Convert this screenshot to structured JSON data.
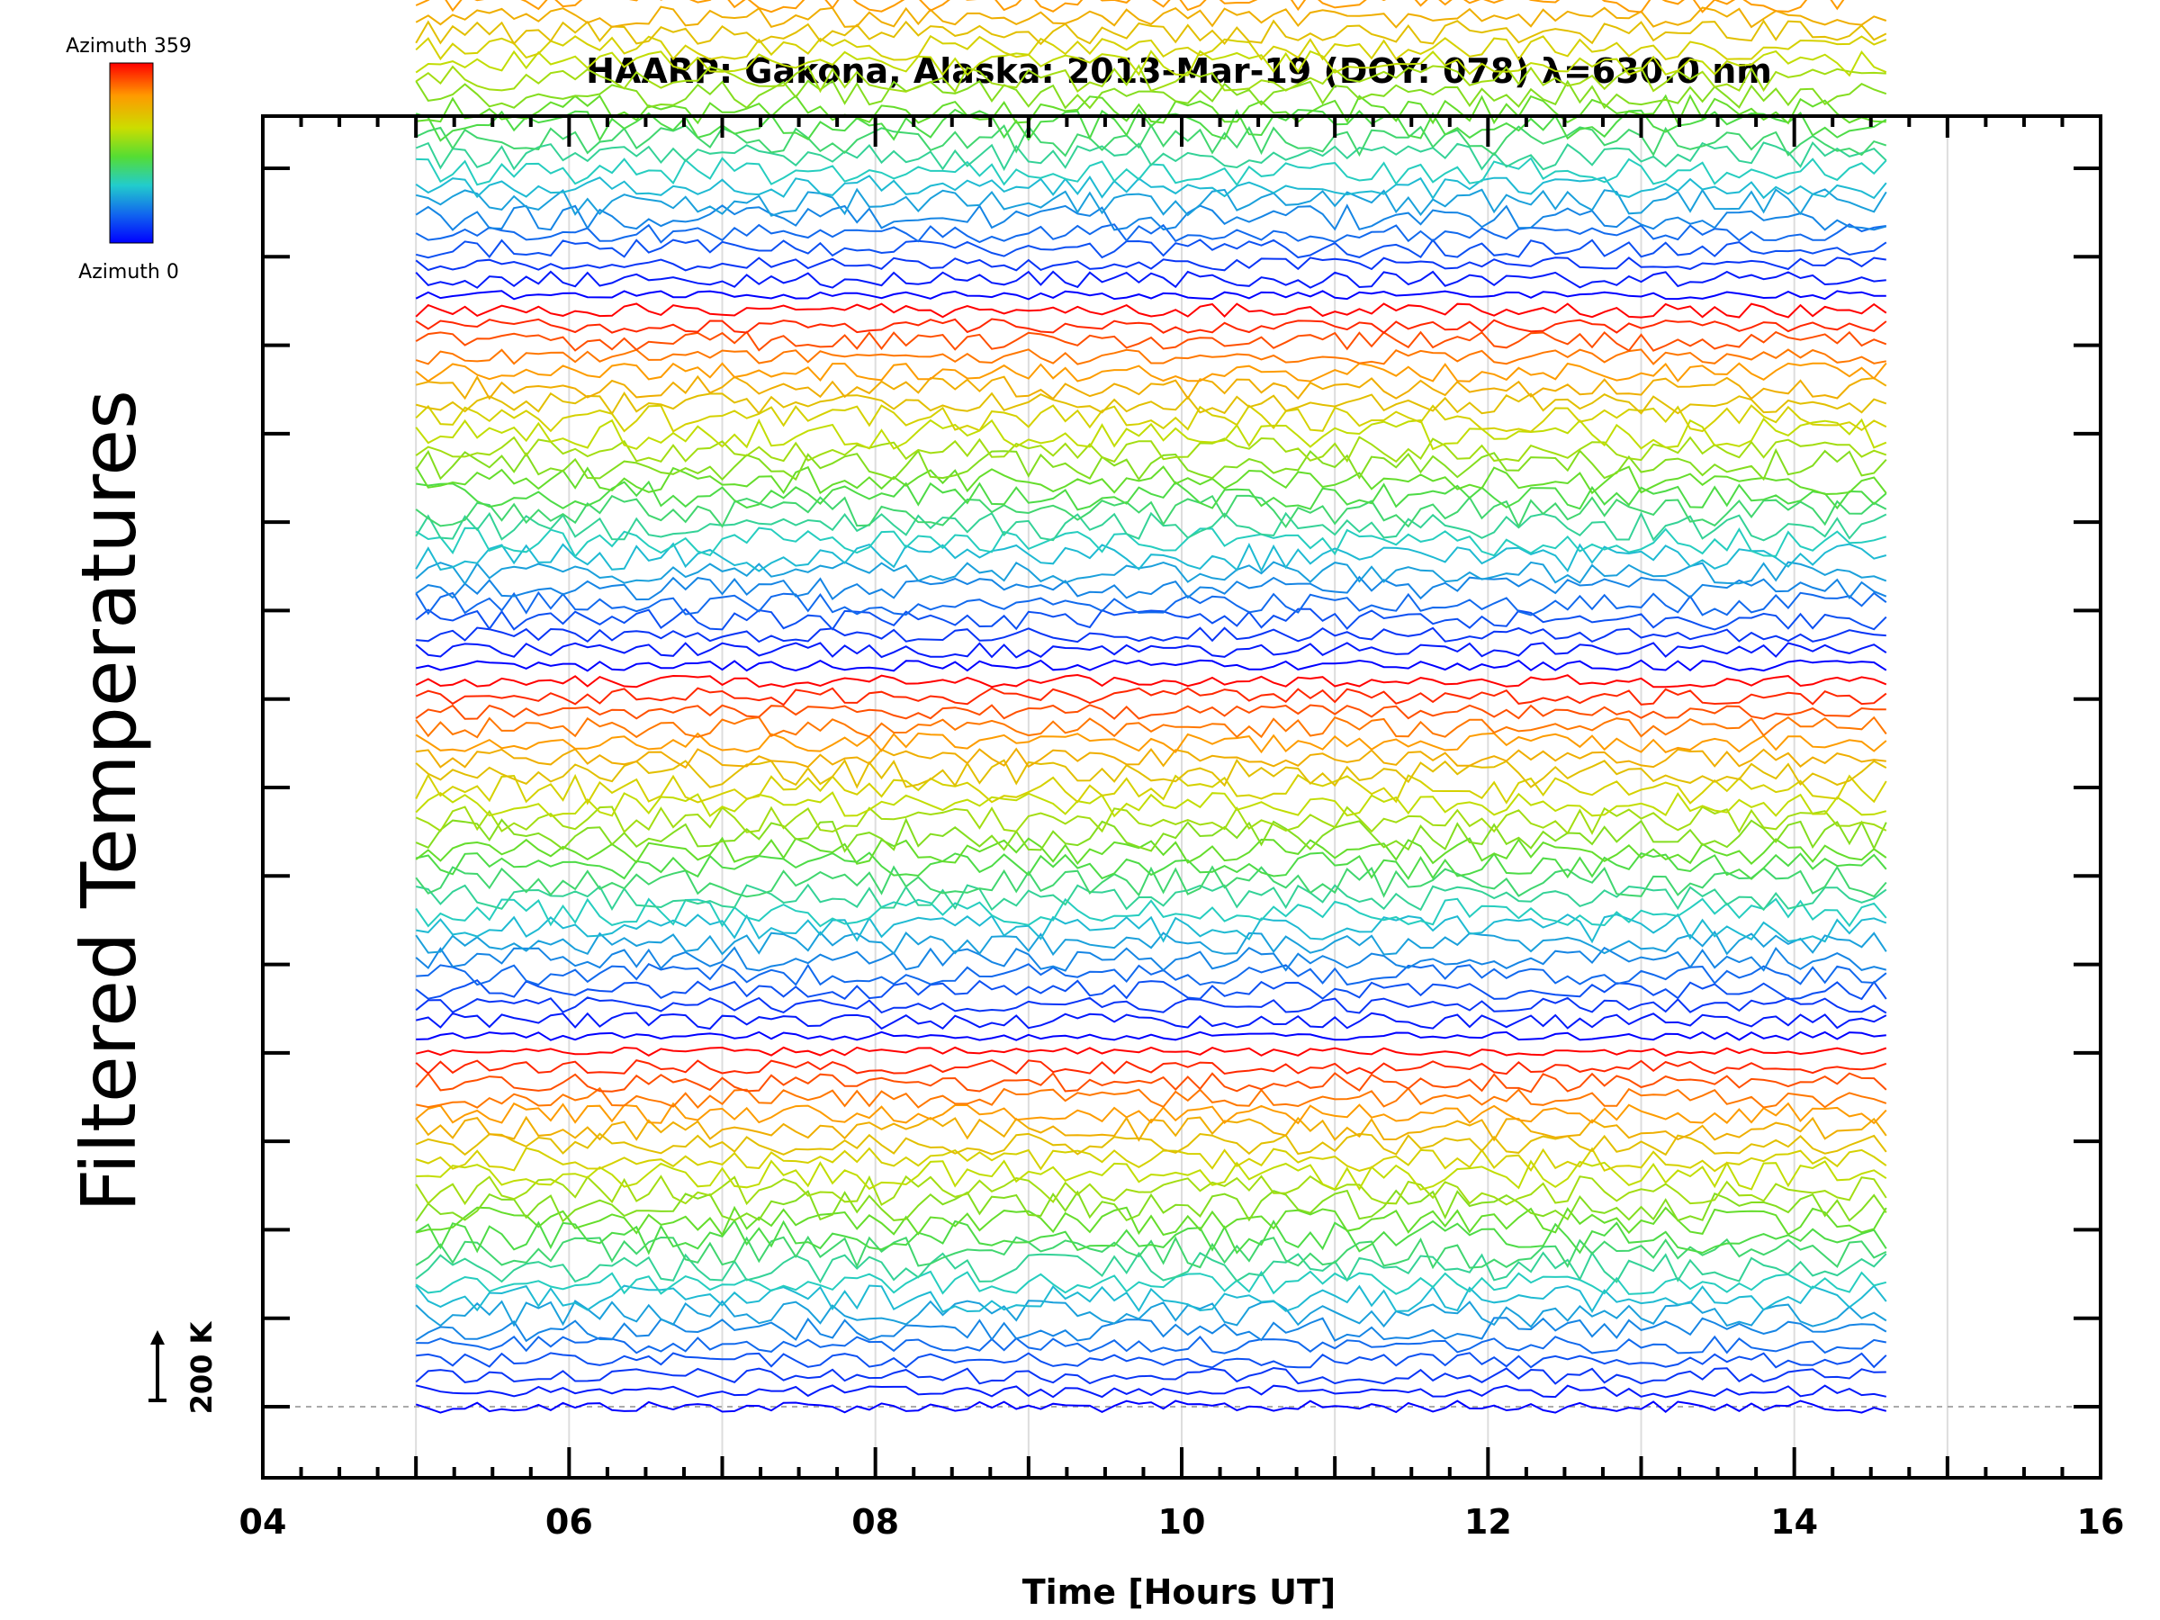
{
  "chart_data": {
    "type": "line",
    "title": "HAARP: Gakona,  Alaska: 2013-Mar-19 (DOY: 078) λ=630.0 nm",
    "xlabel": "Time [Hours UT]",
    "ylabel": "Filtered Temperatures",
    "xlim": [
      4,
      16
    ],
    "x_ticks": [
      "04",
      "06",
      "08",
      "10",
      "12",
      "14",
      "16"
    ],
    "data_x_range": [
      5.0,
      14.6
    ],
    "series_count": 140,
    "offset_per_series_K": 47,
    "scale_bar": {
      "label": "200 K",
      "value_K": 200
    },
    "colorbar": {
      "top_label": "Azimuth 359",
      "bottom_label": "Azimuth 0",
      "colors": [
        "#ff0000",
        "#ff9900",
        "#ccdd00",
        "#55dd33",
        "#22cccc",
        "#1166ee",
        "#0000ff"
      ]
    },
    "grid": true,
    "notes_visible": "stacked azimuth traces, one line per azimuth, colored by azimuth"
  }
}
